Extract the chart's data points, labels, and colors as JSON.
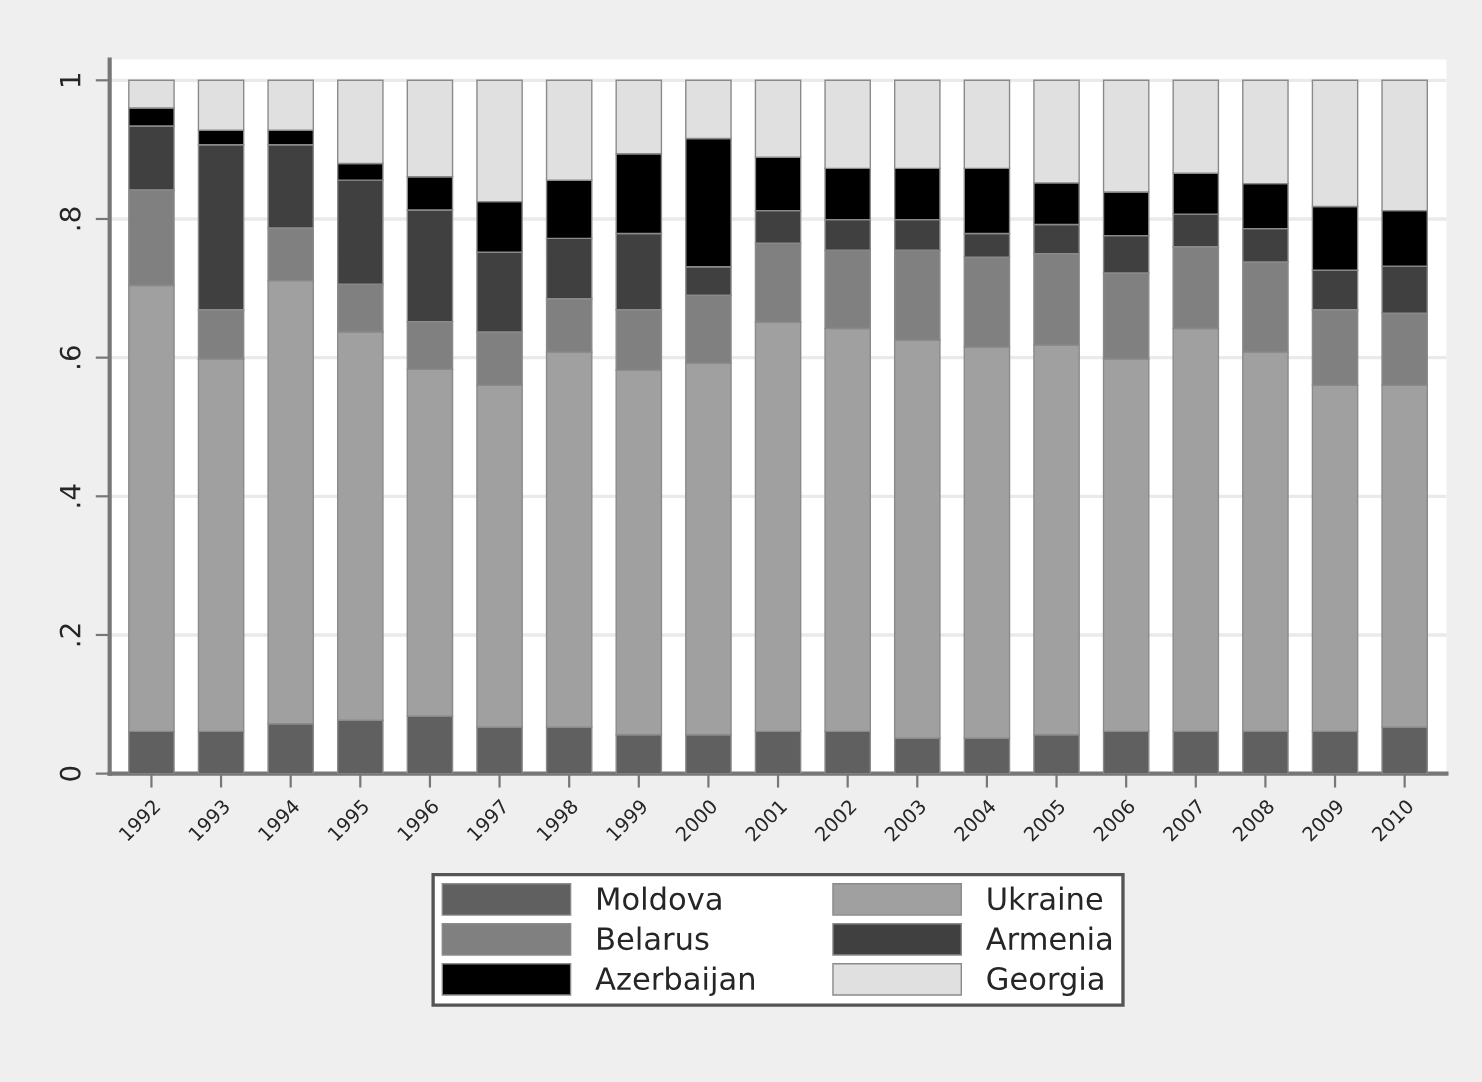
{
  "chart_data": {
    "type": "bar",
    "stacked": true,
    "categories": [
      "1992",
      "1993",
      "1994",
      "1995",
      "1996",
      "1997",
      "1998",
      "1999",
      "2000",
      "2001",
      "2002",
      "2003",
      "2004",
      "2005",
      "2006",
      "2007",
      "2008",
      "2009",
      "2010"
    ],
    "series": [
      {
        "name": "Moldova",
        "color": "#606060",
        "values": [
          0.061,
          0.061,
          0.072,
          0.077,
          0.083,
          0.067,
          0.067,
          0.056,
          0.056,
          0.061,
          0.061,
          0.051,
          0.051,
          0.056,
          0.061,
          0.061,
          0.061,
          0.061,
          0.067
        ]
      },
      {
        "name": "Ukraine",
        "color": "#a0a0a0",
        "values": [
          0.643,
          0.537,
          0.639,
          0.56,
          0.5,
          0.493,
          0.541,
          0.526,
          0.536,
          0.59,
          0.581,
          0.574,
          0.564,
          0.562,
          0.537,
          0.581,
          0.547,
          0.499,
          0.493
        ]
      },
      {
        "name": "Belarus",
        "color": "#808080",
        "values": [
          0.138,
          0.071,
          0.076,
          0.069,
          0.069,
          0.077,
          0.077,
          0.087,
          0.098,
          0.114,
          0.113,
          0.13,
          0.13,
          0.132,
          0.124,
          0.118,
          0.13,
          0.109,
          0.104
        ]
      },
      {
        "name": "Armenia",
        "color": "#404040",
        "values": [
          0.092,
          0.238,
          0.12,
          0.15,
          0.161,
          0.115,
          0.087,
          0.11,
          0.041,
          0.047,
          0.044,
          0.044,
          0.034,
          0.042,
          0.054,
          0.047,
          0.048,
          0.057,
          0.068
        ]
      },
      {
        "name": "Azerbaijan",
        "color": "#000000",
        "values": [
          0.026,
          0.021,
          0.021,
          0.024,
          0.048,
          0.073,
          0.084,
          0.115,
          0.185,
          0.077,
          0.074,
          0.074,
          0.094,
          0.06,
          0.063,
          0.059,
          0.065,
          0.092,
          0.08
        ]
      },
      {
        "name": "Georgia",
        "color": "#e0e0e0",
        "values": [
          0.04,
          0.072,
          0.072,
          0.12,
          0.139,
          0.175,
          0.144,
          0.106,
          0.084,
          0.111,
          0.127,
          0.127,
          0.127,
          0.148,
          0.161,
          0.134,
          0.149,
          0.182,
          0.188
        ]
      }
    ],
    "ylim": [
      0,
      1.03
    ],
    "yticks": [
      0,
      {
        "value": 0.2,
        "label": ".2"
      },
      {
        "value": 0.4,
        "label": ".4"
      },
      {
        "value": 0.6,
        "label": ".6"
      },
      {
        "value": 0.8,
        "label": ".8"
      },
      1
    ],
    "grid": "y",
    "legend": "bottom"
  }
}
